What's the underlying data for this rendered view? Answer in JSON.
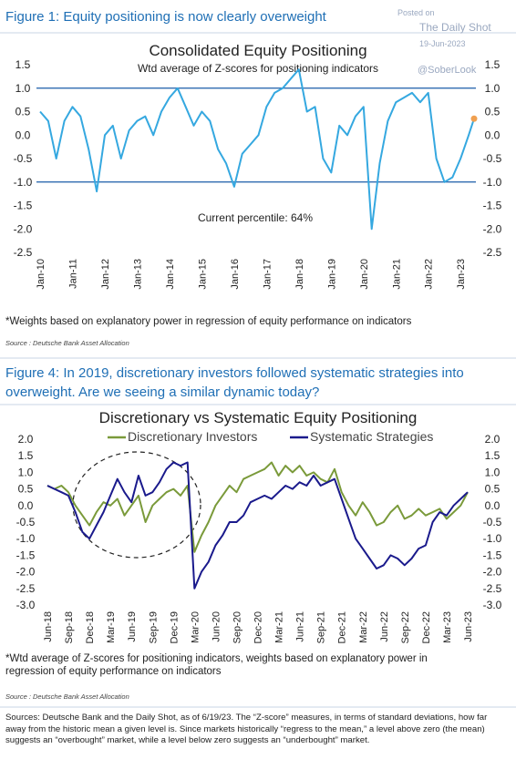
{
  "watermark": {
    "posted": "Posted on",
    "site": "The Daily Shot",
    "date": "19-Jun-2023",
    "handle": "@SoberLook"
  },
  "chart_data": [
    {
      "type": "line",
      "heading": "Figure 1: Equity positioning is now clearly overweight",
      "title": "Consolidated Equity Positioning",
      "subtitle": "Wtd average of Z-scores for positioning indicators",
      "annotation": "Current percentile: 64%",
      "footnote": "*Weights based on explanatory power in regression of equity performance on indicators",
      "source": "Source : Deutsche Bank Asset Allocation",
      "x": [
        "Jan-10",
        "Apr-10",
        "Jul-10",
        "Oct-10",
        "Jan-11",
        "Apr-11",
        "Jul-11",
        "Oct-11",
        "Jan-12",
        "Apr-12",
        "Jul-12",
        "Oct-12",
        "Jan-13",
        "Apr-13",
        "Jul-13",
        "Oct-13",
        "Jan-14",
        "Apr-14",
        "Jul-14",
        "Oct-14",
        "Jan-15",
        "Apr-15",
        "Jul-15",
        "Oct-15",
        "Jan-16",
        "Apr-16",
        "Jul-16",
        "Oct-16",
        "Jan-17",
        "Apr-17",
        "Jul-17",
        "Oct-17",
        "Jan-18",
        "Apr-18",
        "Jul-18",
        "Oct-18",
        "Jan-19",
        "Apr-19",
        "Jul-19",
        "Oct-19",
        "Jan-20",
        "Apr-20",
        "Jul-20",
        "Oct-20",
        "Jan-21",
        "Apr-21",
        "Jul-21",
        "Oct-21",
        "Jan-22",
        "Apr-22",
        "Jul-22",
        "Oct-22",
        "Jan-23",
        "Apr-23",
        "Jun-23"
      ],
      "series": [
        {
          "color": "#35a8e0",
          "end_marker_color": "#f0a050",
          "values": [
            0.5,
            0.3,
            -0.5,
            0.3,
            0.6,
            0.4,
            -0.3,
            -1.2,
            0.0,
            0.2,
            -0.5,
            0.1,
            0.3,
            0.4,
            0.0,
            0.5,
            0.8,
            1.0,
            0.6,
            0.2,
            0.5,
            0.3,
            -0.3,
            -0.6,
            -1.1,
            -0.4,
            -0.2,
            0.0,
            0.6,
            0.9,
            1.0,
            1.2,
            1.4,
            0.5,
            0.6,
            -0.5,
            -0.8,
            0.2,
            0.0,
            0.4,
            0.6,
            -2.0,
            -0.6,
            0.3,
            0.7,
            0.8,
            0.9,
            0.7,
            0.9,
            -0.5,
            -1.0,
            -0.9,
            -0.5,
            0.0,
            0.35
          ]
        }
      ],
      "ylim": [
        -2.5,
        1.5
      ],
      "yticks": [
        -2.5,
        {
          "value": -2,
          "label": "-2.0"
        },
        -1.5,
        {
          "value": -1,
          "label": "-1.0"
        },
        -0.5,
        {
          "value": 0,
          "label": "0.0"
        },
        0.5,
        {
          "value": 1,
          "label": "1.0"
        },
        1.5
      ],
      "ref_lines": [
        1,
        -1
      ],
      "ref_line_color": "#1a5ca8",
      "xticks": [
        "Jan-10",
        "Jan-11",
        "Jan-12",
        "Jan-13",
        "Jan-14",
        "Jan-15",
        "Jan-16",
        "Jan-17",
        "Jan-18",
        "Jan-19",
        "Jan-20",
        "Jan-21",
        "Jan-22",
        "Jan-23"
      ]
    },
    {
      "type": "line",
      "heading": "Figure 4: In 2019, discretionary investors followed systematic strategies into overweight. Are we seeing a similar dynamic today?",
      "title": "Discretionary vs Systematic Equity Positioning",
      "footnote": "*Wtd average of Z-scores for positioning indicators, weights based on explanatory power in regression of equity performance on indicators",
      "source": "Source : Deutsche Bank Asset Allocation",
      "x": [
        "Jun-18",
        "Jul-18",
        "Aug-18",
        "Sep-18",
        "Oct-18",
        "Nov-18",
        "Dec-18",
        "Jan-19",
        "Feb-19",
        "Mar-19",
        "Apr-19",
        "May-19",
        "Jun-19",
        "Jul-19",
        "Aug-19",
        "Sep-19",
        "Oct-19",
        "Nov-19",
        "Dec-19",
        "Jan-20",
        "Feb-20",
        "Mar-20",
        "Apr-20",
        "May-20",
        "Jun-20",
        "Jul-20",
        "Aug-20",
        "Sep-20",
        "Oct-20",
        "Nov-20",
        "Dec-20",
        "Jan-21",
        "Feb-21",
        "Mar-21",
        "Apr-21",
        "May-21",
        "Jun-21",
        "Jul-21",
        "Aug-21",
        "Sep-21",
        "Oct-21",
        "Nov-21",
        "Dec-21",
        "Jan-22",
        "Feb-22",
        "Mar-22",
        "Apr-22",
        "May-22",
        "Jun-22",
        "Jul-22",
        "Aug-22",
        "Sep-22",
        "Oct-22",
        "Nov-22",
        "Dec-22",
        "Jan-23",
        "Feb-23",
        "Mar-23",
        "Apr-23",
        "May-23",
        "Jun-23"
      ],
      "series": [
        {
          "name": "Discretionary Investors",
          "color": "#7a9a3a",
          "values": [
            0.6,
            0.5,
            0.6,
            0.4,
            0.0,
            -0.3,
            -0.6,
            -0.2,
            0.1,
            0.0,
            0.2,
            -0.3,
            0.0,
            0.3,
            -0.5,
            0.0,
            0.2,
            0.4,
            0.5,
            0.3,
            0.6,
            -1.4,
            -0.9,
            -0.5,
            0.0,
            0.3,
            0.6,
            0.4,
            0.8,
            0.9,
            1.0,
            1.1,
            1.3,
            0.9,
            1.2,
            1.0,
            1.2,
            0.9,
            1.0,
            0.8,
            0.7,
            1.1,
            0.4,
            0.0,
            -0.3,
            0.1,
            -0.2,
            -0.6,
            -0.5,
            -0.2,
            0.0,
            -0.4,
            -0.3,
            -0.1,
            -0.3,
            -0.2,
            -0.1,
            -0.4,
            -0.2,
            0.0,
            0.4
          ]
        },
        {
          "name": "Systematic Strategies",
          "color": "#1a1a8c",
          "values": [
            0.6,
            0.5,
            0.4,
            0.3,
            -0.2,
            -0.8,
            -1.0,
            -0.6,
            -0.2,
            0.3,
            0.8,
            0.4,
            0.1,
            0.9,
            0.3,
            0.4,
            0.7,
            1.1,
            1.3,
            1.2,
            1.3,
            -2.5,
            -2.0,
            -1.7,
            -1.2,
            -0.9,
            -0.5,
            -0.5,
            -0.3,
            0.1,
            0.2,
            0.3,
            0.2,
            0.4,
            0.6,
            0.5,
            0.7,
            0.6,
            0.9,
            0.6,
            0.7,
            0.8,
            0.2,
            -0.4,
            -1.0,
            -1.3,
            -1.6,
            -1.9,
            -1.8,
            -1.5,
            -1.6,
            -1.8,
            -1.6,
            -1.3,
            -1.2,
            -0.5,
            -0.2,
            -0.3,
            0.0,
            0.2,
            0.4
          ]
        }
      ],
      "ylim": [
        -3,
        2
      ],
      "yticks": [
        {
          "value": -3,
          "label": "-3.0"
        },
        -2.5,
        {
          "value": -2,
          "label": "-2.0"
        },
        -1.5,
        {
          "value": -1,
          "label": "-1.0"
        },
        -0.5,
        {
          "value": 0,
          "label": "0.0"
        },
        0.5,
        {
          "value": 1,
          "label": "1.0"
        },
        1.5,
        {
          "value": 2,
          "label": "2.0"
        }
      ],
      "xticks": [
        "Jun-18",
        "Sep-18",
        "Dec-18",
        "Mar-19",
        "Jun-19",
        "Sep-19",
        "Dec-19",
        "Mar-20",
        "Jun-20",
        "Sep-20",
        "Dec-20",
        "Mar-21",
        "Jun-21",
        "Sep-21",
        "Dec-21",
        "Mar-22",
        "Jun-22",
        "Sep-22",
        "Dec-22",
        "Mar-23",
        "Jun-23"
      ]
    }
  ],
  "sources_note": "Sources: Deutsche Bank and the Daily Shot, as of 6/19/23. The “Z-score” measures, in terms of standard deviations, how far away from the historic mean a given level is. Since markets historically “regress to the mean,” a level above zero (the mean) suggests an “overbought” market, while a level below zero suggests an “underbought” market."
}
